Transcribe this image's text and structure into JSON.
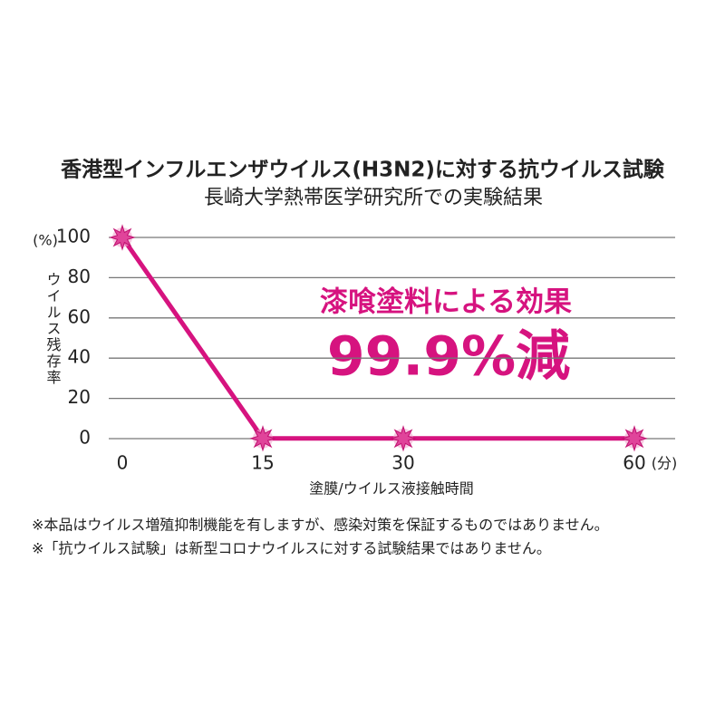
{
  "chart_data": {
    "type": "line",
    "title": "香港型インフルエンザウイルス(H3N2)に対する抗ウイルス試験",
    "subtitle": "長崎大学熱帯医学研究所での実験結果",
    "categories": [
      "0",
      "15",
      "30",
      "60"
    ],
    "values": [
      100,
      0.1,
      0.1,
      0.1
    ],
    "color": "#d6137f",
    "ylim": [
      0,
      100
    ],
    "yticks": [
      0,
      20,
      40,
      60,
      80,
      100
    ],
    "grid": true,
    "y_unit": "(%)",
    "ylabel": "ウイルス残存率",
    "xlabel": "塗膜/ウイルス液接触時間",
    "x_unit": "(分)",
    "annotations": [
      "漆喰塗料による効果",
      "99.9%減"
    ]
  },
  "notes": [
    "※本品はウイルス増殖抑制機能を有しますが、感染対策を保証するものではありません。",
    "※「抗ウイルス試験」は新型コロナウイルスに対する試験結果ではありません。"
  ]
}
